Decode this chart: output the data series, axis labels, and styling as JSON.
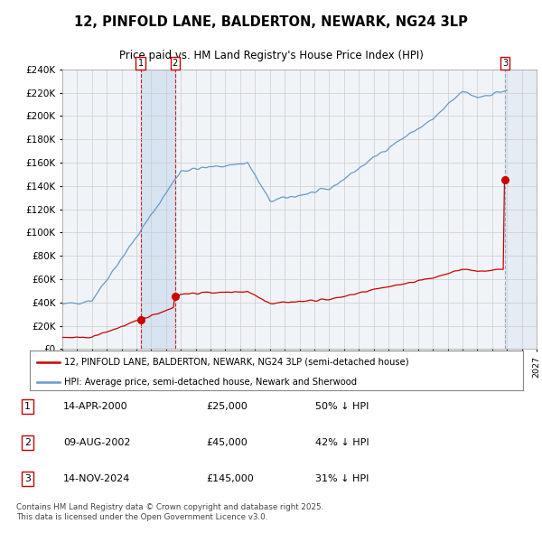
{
  "title": "12, PINFOLD LANE, BALDERTON, NEWARK, NG24 3LP",
  "subtitle": "Price paid vs. HM Land Registry's House Price Index (HPI)",
  "hpi_color": "#6699cc",
  "price_color": "#cc0000",
  "annotation_box_color": "#cc0000",
  "vline3_color": "#8899bb",
  "background_color": "#ffffff",
  "chart_bg": "#f0f4f8",
  "grid_color": "#cccccc",
  "ylim": [
    0,
    240000
  ],
  "yticks": [
    0,
    20000,
    40000,
    60000,
    80000,
    100000,
    120000,
    140000,
    160000,
    180000,
    200000,
    220000,
    240000
  ],
  "ytick_labels": [
    "£0",
    "£20K",
    "£40K",
    "£60K",
    "£80K",
    "£100K",
    "£120K",
    "£140K",
    "£160K",
    "£180K",
    "£200K",
    "£220K",
    "£240K"
  ],
  "xlim_start": 1995.0,
  "xlim_end": 2027.0,
  "legend_line1": "12, PINFOLD LANE, BALDERTON, NEWARK, NG24 3LP (semi-detached house)",
  "legend_line2": "HPI: Average price, semi-detached house, Newark and Sherwood",
  "transactions": [
    {
      "num": 1,
      "date": "14-APR-2000",
      "price": 25000,
      "pct": "50%",
      "x_year": 2000.28
    },
    {
      "num": 2,
      "date": "09-AUG-2002",
      "price": 45000,
      "pct": "42%",
      "x_year": 2002.61
    },
    {
      "num": 3,
      "date": "14-NOV-2024",
      "price": 145000,
      "pct": "31%",
      "x_year": 2024.87
    }
  ],
  "footnote": "Contains HM Land Registry data © Crown copyright and database right 2025.\nThis data is licensed under the Open Government Licence v3.0."
}
